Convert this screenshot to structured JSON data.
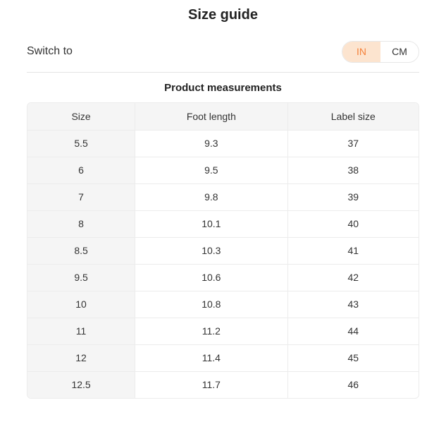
{
  "title": "Size guide",
  "unit_switch": {
    "label": "Switch to",
    "options": [
      {
        "label": "IN",
        "active": true
      },
      {
        "label": "CM",
        "active": false
      }
    ]
  },
  "section_title": "Product measurements",
  "table": {
    "columns": [
      "Size",
      "Foot length",
      "Label size"
    ],
    "rows": [
      [
        "5.5",
        "9.3",
        "37"
      ],
      [
        "6",
        "9.5",
        "38"
      ],
      [
        "7",
        "9.8",
        "39"
      ],
      [
        "8",
        "10.1",
        "40"
      ],
      [
        "8.5",
        "10.3",
        "41"
      ],
      [
        "9.5",
        "10.6",
        "42"
      ],
      [
        "10",
        "10.8",
        "43"
      ],
      [
        "11",
        "11.2",
        "44"
      ],
      [
        "12",
        "11.4",
        "45"
      ],
      [
        "12.5",
        "11.7",
        "46"
      ]
    ]
  },
  "colors": {
    "accent": "#f5823c",
    "accent_bg": "#fce4cf",
    "table_header_bg": "#f5f5f5",
    "border": "#ececec"
  }
}
